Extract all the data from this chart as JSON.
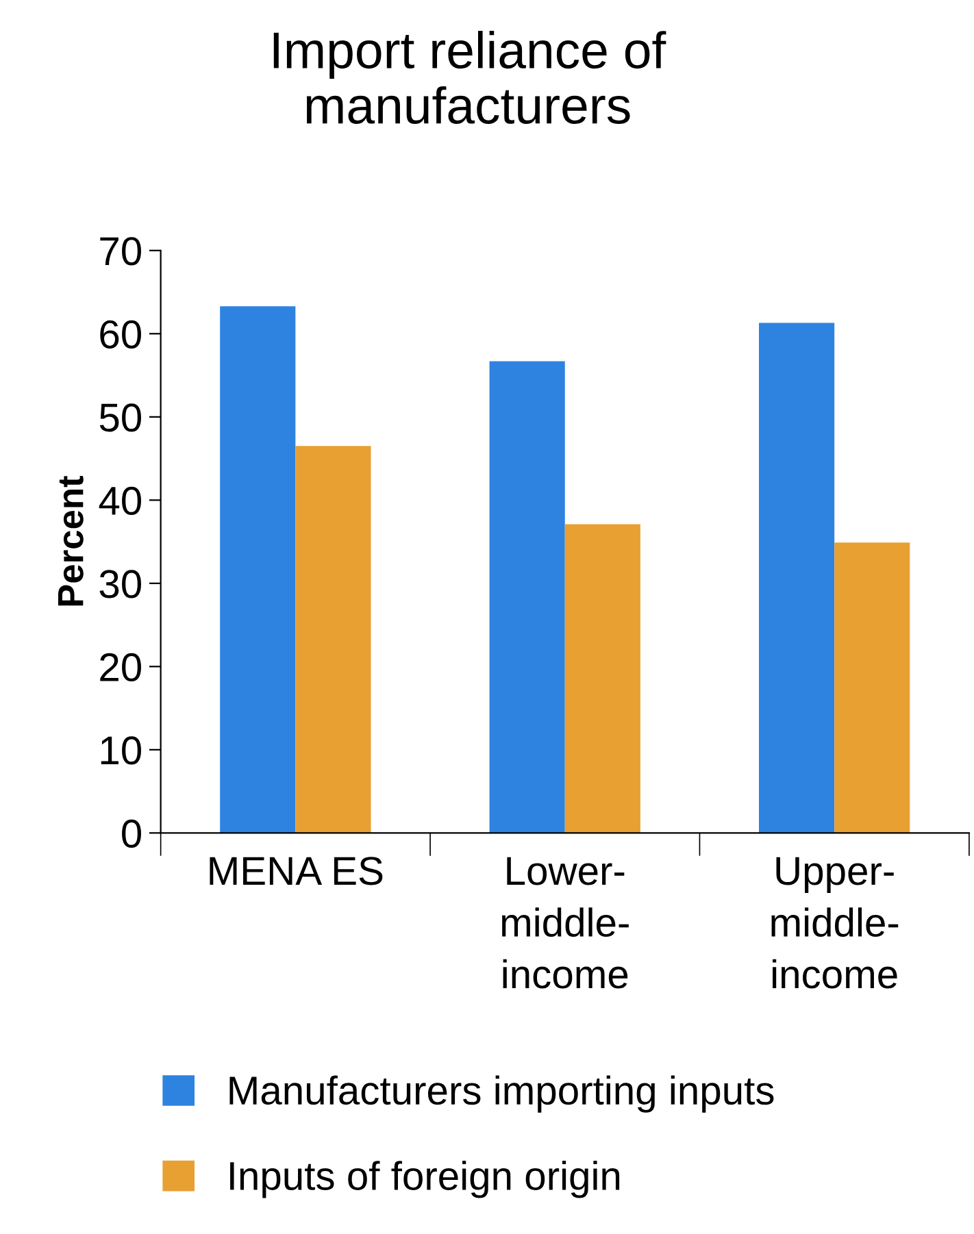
{
  "chart_data": {
    "type": "bar",
    "title": "Import reliance of manufacturers",
    "ylabel": "Percent",
    "categories": [
      "MENA ES",
      "Lower-middle-income",
      "Upper-middle-income"
    ],
    "series": [
      {
        "name": "Manufacturers importing inputs",
        "color": "#2e83e0",
        "values": [
          63.3,
          56.7,
          61.3
        ]
      },
      {
        "name": "Inputs of foreign origin",
        "color": "#e8a033",
        "values": [
          46.5,
          37.1,
          34.9
        ]
      }
    ],
    "ylim": [
      0,
      70
    ],
    "yticks": [
      0,
      10,
      20,
      30,
      40,
      50,
      60,
      70
    ],
    "grid": false,
    "legend": "bottom"
  }
}
